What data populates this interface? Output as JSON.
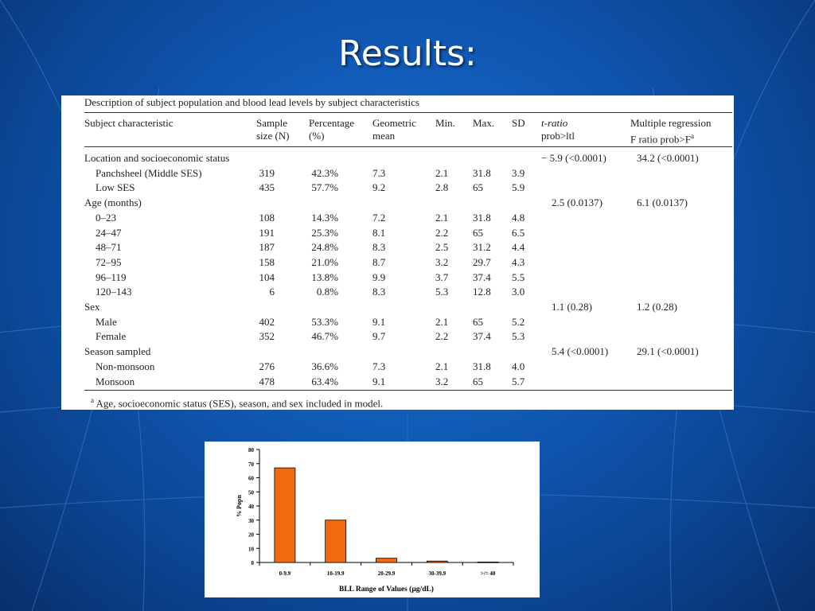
{
  "slide_title": "Results:",
  "table": {
    "caption": "Description of subject population and blood lead levels by subject characteristics",
    "headers": {
      "characteristic": "Subject characteristic",
      "sample_1": "Sample",
      "sample_2": "size (N)",
      "percentage_1": "Percentage",
      "percentage_2": "(%)",
      "geo_1": "Geometric",
      "geo_2": "mean",
      "min": "Min.",
      "max": "Max.",
      "sd": "SD",
      "t_1": "t-ratio",
      "t_2": "prob>ltl",
      "mr_1": "Multiple regression",
      "mr_2": "F ratio prob>F"
    },
    "rows": [
      {
        "label": "Location and socioeconomic status",
        "group": true,
        "n": "",
        "pct": "",
        "gm": "",
        "min": "",
        "max": "",
        "sd": "",
        "t": "− 5.9 (<0.0001)",
        "f": "34.2 (<0.0001)"
      },
      {
        "label": "Panchsheel (Middle SES)",
        "group": false,
        "n": "319",
        "pct": "42.3%",
        "gm": "7.3",
        "min": "2.1",
        "max": "31.8",
        "sd": "3.9",
        "t": "",
        "f": ""
      },
      {
        "label": "Low SES",
        "group": false,
        "n": "435",
        "pct": "57.7%",
        "gm": "9.2",
        "min": "2.8",
        "max": "65",
        "sd": "5.9",
        "t": "",
        "f": ""
      },
      {
        "label": "Age (months)",
        "group": true,
        "n": "",
        "pct": "",
        "gm": "",
        "min": "",
        "max": "",
        "sd": "",
        "t": "2.5 (0.0137)",
        "f": "6.1 (0.0137)"
      },
      {
        "label": "0–23",
        "group": false,
        "n": "108",
        "pct": "14.3%",
        "gm": "7.2",
        "min": "2.1",
        "max": "31.8",
        "sd": "4.8",
        "t": "",
        "f": ""
      },
      {
        "label": "24–47",
        "group": false,
        "n": "191",
        "pct": "25.3%",
        "gm": "8.1",
        "min": "2.2",
        "max": "65",
        "sd": "6.5",
        "t": "",
        "f": ""
      },
      {
        "label": "48–71",
        "group": false,
        "n": "187",
        "pct": "24.8%",
        "gm": "8.3",
        "min": "2.5",
        "max": "31.2",
        "sd": "4.4",
        "t": "",
        "f": ""
      },
      {
        "label": "72–95",
        "group": false,
        "n": "158",
        "pct": "21.0%",
        "gm": "8.7",
        "min": "3.2",
        "max": "29.7",
        "sd": "4.3",
        "t": "",
        "f": ""
      },
      {
        "label": "96–119",
        "group": false,
        "n": "104",
        "pct": "13.8%",
        "gm": "9.9",
        "min": "3.7",
        "max": "37.4",
        "sd": "5.5",
        "t": "",
        "f": ""
      },
      {
        "label": "120–143",
        "group": false,
        "n": "6",
        "pct": "0.8%",
        "gm": "8.3",
        "min": "5.3",
        "max": "12.8",
        "sd": "3.0",
        "t": "",
        "f": ""
      },
      {
        "label": "Sex",
        "group": true,
        "n": "",
        "pct": "",
        "gm": "",
        "min": "",
        "max": "",
        "sd": "",
        "t": "1.1 (0.28)",
        "f": "1.2 (0.28)"
      },
      {
        "label": "Male",
        "group": false,
        "n": "402",
        "pct": "53.3%",
        "gm": "9.1",
        "min": "2.1",
        "max": "65",
        "sd": "5.2",
        "t": "",
        "f": ""
      },
      {
        "label": "Female",
        "group": false,
        "n": "352",
        "pct": "46.7%",
        "gm": "9.7",
        "min": "2.2",
        "max": "37.4",
        "sd": "5.3",
        "t": "",
        "f": ""
      },
      {
        "label": "Season sampled",
        "group": true,
        "n": "",
        "pct": "",
        "gm": "",
        "min": "",
        "max": "",
        "sd": "",
        "t": "5.4 (<0.0001)",
        "f": "29.1 (<0.0001)"
      },
      {
        "label": "Non-monsoon",
        "group": false,
        "n": "276",
        "pct": "36.6%",
        "gm": "7.3",
        "min": "2.1",
        "max": "31.8",
        "sd": "4.0",
        "t": "",
        "f": ""
      },
      {
        "label": "Monsoon",
        "group": false,
        "n": "478",
        "pct": "63.4%",
        "gm": "9.1",
        "min": "3.2",
        "max": "65",
        "sd": "5.7",
        "t": "",
        "f": ""
      }
    ],
    "footnote_mark": "a",
    "footnote": "Age, socioeconomic status (SES), season, and sex included in model."
  },
  "chart_data": {
    "type": "bar",
    "categories": [
      "0-9.9",
      "10-19.9",
      "20-29.9",
      "30-39.9",
      ">/= 40"
    ],
    "values": [
      67,
      30,
      3,
      1,
      0.3
    ],
    "xlabel": "BLL Range of Values (µg/dL)",
    "ylabel": "% Popn",
    "ylim": [
      0,
      80
    ],
    "yticks": [
      0,
      10,
      20,
      30,
      40,
      50,
      60,
      70,
      80
    ],
    "bar_color": "#f26a0f",
    "grid": false
  }
}
